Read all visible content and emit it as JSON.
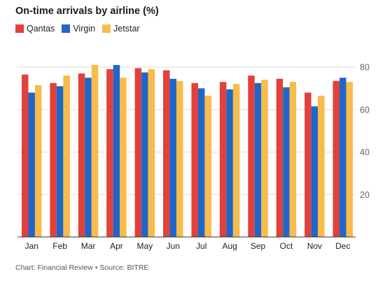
{
  "colors": {
    "Qantas": "#e0413b",
    "Virgin": "#1f66c9",
    "Jetstar": "#f9bb49",
    "grid": "#dddddd",
    "axis": "#333333",
    "tick": "#666666"
  },
  "chart_data": {
    "type": "bar",
    "title": "On-time arrivals by airline (%)",
    "categories": [
      "Jan",
      "Feb",
      "Mar",
      "Apr",
      "May",
      "Jun",
      "Jul",
      "Aug",
      "Sep",
      "Oct",
      "Nov",
      "Dec"
    ],
    "series": [
      {
        "name": "Qantas",
        "values": [
          76.5,
          72.5,
          77.0,
          79.0,
          79.5,
          78.5,
          72.5,
          73.0,
          76.0,
          74.5,
          68.0,
          73.5
        ]
      },
      {
        "name": "Virgin",
        "values": [
          68.0,
          71.0,
          75.0,
          81.0,
          77.5,
          74.5,
          70.0,
          69.5,
          72.5,
          70.5,
          61.5,
          75.0
        ]
      },
      {
        "name": "Jetstar",
        "values": [
          71.5,
          76.0,
          81.0,
          75.0,
          79.0,
          73.5,
          66.5,
          72.0,
          74.0,
          73.0,
          66.5,
          73.0
        ]
      }
    ],
    "ylim": [
      0,
      80
    ],
    "yticks": [
      20,
      40,
      60,
      80
    ],
    "ylabel": "",
    "xlabel": "",
    "grid": true,
    "legend_position": "top-left",
    "source": "Chart: Financial Review • Source: BITRE"
  }
}
